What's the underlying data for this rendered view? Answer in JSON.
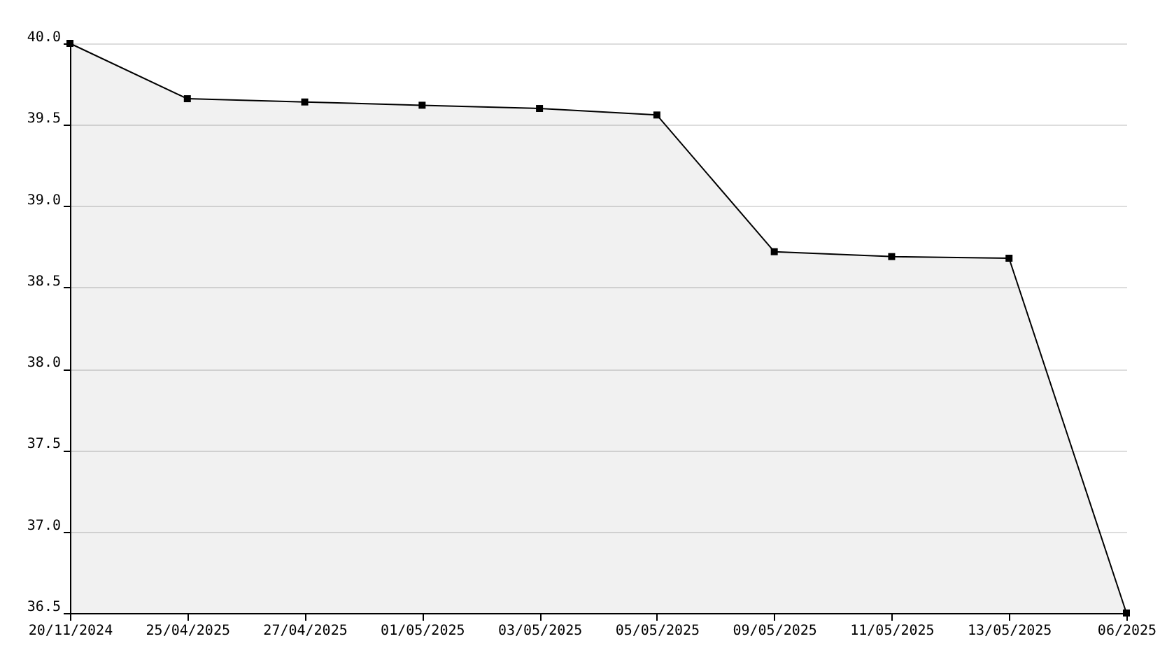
{
  "chart_data": {
    "type": "area",
    "categories": [
      "20/11/2024",
      "25/04/2025",
      "27/04/2025",
      "01/05/2025",
      "03/05/2025",
      "05/05/2025",
      "09/05/2025",
      "11/05/2025",
      "13/05/2025",
      "06/2025"
    ],
    "series": [
      {
        "color": "#000000",
        "values": [
          40.0,
          39.66,
          39.64,
          39.62,
          39.6,
          39.56,
          38.72,
          38.69,
          38.68,
          36.5
        ]
      }
    ],
    "ylim": [
      36.5,
      40.0
    ],
    "yticks": [
      {
        "value": 36.5,
        "label": "36.5"
      },
      {
        "value": 37.0,
        "label": "37.0"
      },
      {
        "value": 37.5,
        "label": "37.5"
      },
      {
        "value": 38.0,
        "label": "38.0"
      },
      {
        "value": 38.5,
        "label": "38.5"
      },
      {
        "value": 39.0,
        "label": "39.0"
      },
      {
        "value": 39.5,
        "label": "39.5"
      },
      {
        "value": 40.0,
        "label": "40.0"
      }
    ],
    "grid": "y",
    "marker": "square",
    "line_style": "solid"
  }
}
